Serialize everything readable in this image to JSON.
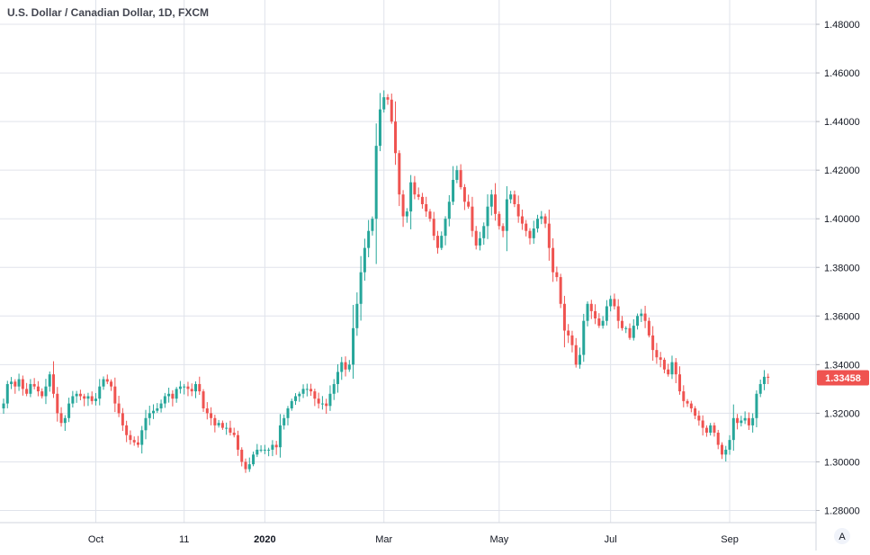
{
  "chart_data": {
    "type": "candlestick",
    "title": "U.S. Dollar / Canadian Dollar, 1D, FXCM",
    "last_price_label": "1.33458",
    "autoscale_label": "A",
    "colors": {
      "up": "#26a69a",
      "down": "#ef5350",
      "grid": "#e0e3eb",
      "text": "#131722",
      "price_badge": "#ef5350"
    },
    "y_axis": {
      "position": "right",
      "range": [
        1.275,
        1.49
      ],
      "ticks": [
        "1.28000",
        "1.30000",
        "1.32000",
        "1.34000",
        "1.36000",
        "1.38000",
        "1.40000",
        "1.42000",
        "1.44000",
        "1.46000",
        "1.48000"
      ],
      "tick_values": [
        1.28,
        1.3,
        1.32,
        1.34,
        1.36,
        1.38,
        1.4,
        1.42,
        1.44,
        1.46,
        1.48
      ]
    },
    "x_axis": {
      "labels": [
        {
          "label": "Oct",
          "bar": 24,
          "bold": false
        },
        {
          "label": "11",
          "bar": 47,
          "bold": false
        },
        {
          "label": "2020",
          "bar": 68,
          "bold": true
        },
        {
          "label": "Mar",
          "bar": 99,
          "bold": false
        },
        {
          "label": "May",
          "bar": 129,
          "bold": false
        },
        {
          "label": "Jul",
          "bar": 158,
          "bold": false
        },
        {
          "label": "Sep",
          "bar": 189,
          "bold": false
        }
      ]
    },
    "grid": true,
    "series_close": [
      1.324,
      1.332,
      1.333,
      1.331,
      1.334,
      1.33,
      1.328,
      1.332,
      1.331,
      1.329,
      1.327,
      1.331,
      1.336,
      1.328,
      1.32,
      1.316,
      1.318,
      1.324,
      1.327,
      1.328,
      1.327,
      1.326,
      1.327,
      1.325,
      1.326,
      1.331,
      1.334,
      1.333,
      1.331,
      1.324,
      1.32,
      1.315,
      1.311,
      1.309,
      1.308,
      1.307,
      1.313,
      1.318,
      1.32,
      1.321,
      1.322,
      1.324,
      1.327,
      1.328,
      1.326,
      1.33,
      1.331,
      1.331,
      1.33,
      1.329,
      1.332,
      1.329,
      1.322,
      1.32,
      1.318,
      1.315,
      1.316,
      1.314,
      1.314,
      1.312,
      1.311,
      1.305,
      1.3,
      1.297,
      1.299,
      1.303,
      1.305,
      1.305,
      1.305,
      1.305,
      1.307,
      1.306,
      1.315,
      1.318,
      1.322,
      1.325,
      1.327,
      1.328,
      1.33,
      1.33,
      1.329,
      1.326,
      1.324,
      1.324,
      1.323,
      1.328,
      1.332,
      1.337,
      1.341,
      1.338,
      1.34,
      1.355,
      1.365,
      1.378,
      1.388,
      1.395,
      1.4,
      1.43,
      1.445,
      1.45,
      1.449,
      1.44,
      1.427,
      1.41,
      1.401,
      1.403,
      1.415,
      1.41,
      1.409,
      1.406,
      1.403,
      1.4,
      1.393,
      1.388,
      1.393,
      1.4,
      1.407,
      1.416,
      1.42,
      1.413,
      1.407,
      1.405,
      1.395,
      1.389,
      1.392,
      1.397,
      1.405,
      1.41,
      1.402,
      1.397,
      1.395,
      1.408,
      1.41,
      1.406,
      1.401,
      1.398,
      1.395,
      1.392,
      1.396,
      1.4,
      1.401,
      1.398,
      1.388,
      1.378,
      1.376,
      1.365,
      1.354,
      1.352,
      1.348,
      1.34,
      1.344,
      1.358,
      1.365,
      1.362,
      1.359,
      1.356,
      1.358,
      1.364,
      1.367,
      1.364,
      1.358,
      1.355,
      1.355,
      1.351,
      1.356,
      1.36,
      1.361,
      1.358,
      1.352,
      1.346,
      1.343,
      1.342,
      1.338,
      1.336,
      1.341,
      1.336,
      1.329,
      1.325,
      1.324,
      1.322,
      1.319,
      1.317,
      1.314,
      1.312,
      1.315,
      1.312,
      1.307,
      1.303,
      1.305,
      1.309,
      1.318,
      1.316,
      1.317,
      1.318,
      1.315,
      1.318,
      1.328,
      1.332,
      1.335,
      1.3346
    ]
  }
}
